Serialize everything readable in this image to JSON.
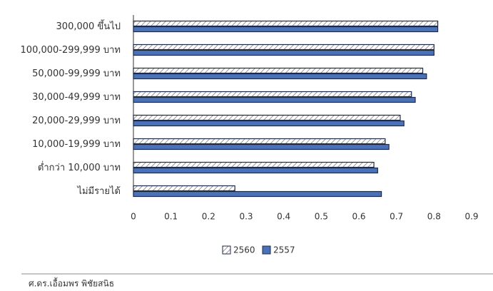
{
  "chart_data": {
    "type": "bar",
    "orientation": "horizontal",
    "categories": [
      "300,000 ขึ้นไป",
      "100,000-299,999 บาท",
      "50,000-99,999 บาท",
      "30,000-49,999 บาท",
      "20,000-29,999 บาท",
      "10,000-19,999 บาท",
      "ต่ำกว่า 10,000 บาท",
      "ไม่มีรายได้"
    ],
    "series": [
      {
        "name": "2560",
        "color": "hatch",
        "values": [
          0.81,
          0.8,
          0.77,
          0.74,
          0.71,
          0.67,
          0.64,
          0.27
        ]
      },
      {
        "name": "2557",
        "color": "#4a72b8",
        "values": [
          0.81,
          0.8,
          0.78,
          0.75,
          0.72,
          0.68,
          0.65,
          0.66
        ]
      }
    ],
    "xlim": [
      0,
      0.9
    ],
    "xticks": [
      0,
      0.1,
      0.2,
      0.3,
      0.4,
      0.5,
      0.6,
      0.7,
      0.8,
      0.9
    ],
    "legend": "bottom"
  },
  "footer": "ศ.ดร.เอื้อมพร พิชัยสนิธ"
}
